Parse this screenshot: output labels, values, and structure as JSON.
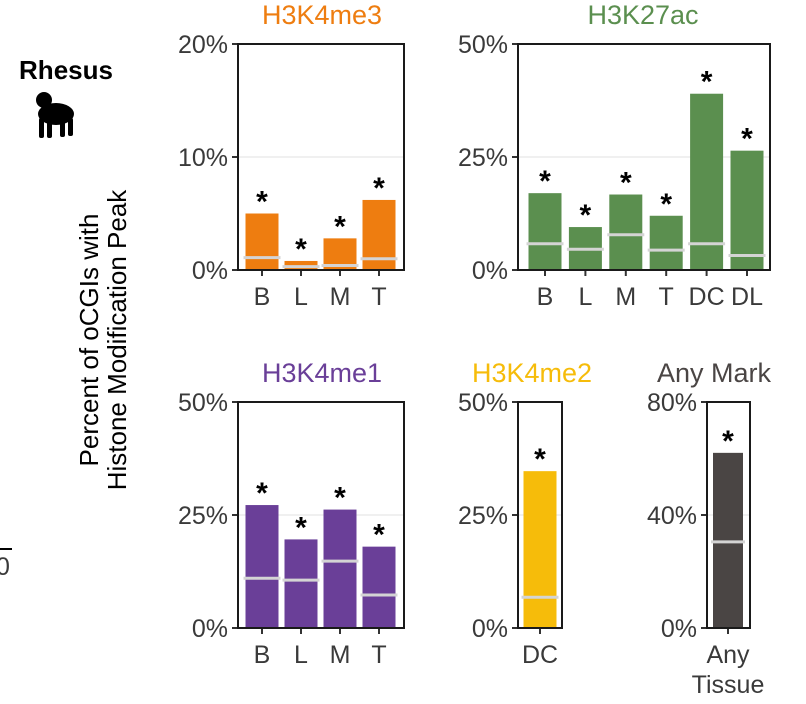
{
  "species_label": "Rhesus",
  "species_icon": "monkey-icon",
  "edge_fragment": "0",
  "ylabel_line1": "Percent of oCGIs with",
  "ylabel_line2": "Histone Modification Peak",
  "colors": {
    "H3K4me3": "#ee7d10",
    "H3K27ac": "#5b8f4f",
    "H3K4me1": "#6a3f98",
    "H3K4me2": "#f6bc0a",
    "Any Mark": "#4a4544",
    "background_line": "#d4d4d4"
  },
  "chart_data": [
    {
      "type": "bar",
      "title": "H3K4me3",
      "categories": [
        "B",
        "L",
        "M",
        "T"
      ],
      "values": [
        5.0,
        0.8,
        2.8,
        6.2
      ],
      "background_values": [
        1.1,
        0.3,
        0.4,
        1.0
      ],
      "significance": [
        "*",
        "*",
        "*",
        "*"
      ],
      "ylim": [
        0,
        20
      ],
      "yticks": [
        "0%",
        "10%",
        "20%"
      ],
      "ytick_values": [
        0,
        10,
        20
      ]
    },
    {
      "type": "bar",
      "title": "H3K27ac",
      "categories": [
        "B",
        "L",
        "M",
        "T",
        "DC",
        "DL"
      ],
      "values": [
        17.0,
        9.5,
        16.7,
        12.0,
        39.0,
        26.4
      ],
      "background_values": [
        5.8,
        4.6,
        7.8,
        4.4,
        5.8,
        3.2
      ],
      "significance": [
        "*",
        "*",
        "*",
        "*",
        "*",
        "*"
      ],
      "ylim": [
        0,
        50
      ],
      "yticks": [
        "0%",
        "25%",
        "50%"
      ],
      "ytick_values": [
        0,
        25,
        50
      ]
    },
    {
      "type": "bar",
      "title": "H3K4me1",
      "categories": [
        "B",
        "L",
        "M",
        "T"
      ],
      "values": [
        27.2,
        19.6,
        26.2,
        18.0
      ],
      "background_values": [
        11.0,
        10.6,
        14.8,
        7.3
      ],
      "significance": [
        "*",
        "*",
        "*",
        "*"
      ],
      "ylim": [
        0,
        50
      ],
      "yticks": [
        "0%",
        "25%",
        "50%"
      ],
      "ytick_values": [
        0,
        25,
        50
      ]
    },
    {
      "type": "bar",
      "title": "H3K4me2",
      "categories": [
        "DC"
      ],
      "values": [
        34.7
      ],
      "background_values": [
        6.8
      ],
      "significance": [
        "*"
      ],
      "ylim": [
        0,
        50
      ],
      "yticks": [
        "0%",
        "25%",
        "50%"
      ],
      "ytick_values": [
        0,
        25,
        50
      ]
    },
    {
      "type": "bar",
      "title": "Any Mark",
      "categories": [
        "Any\nTissue"
      ],
      "values": [
        62.0
      ],
      "background_values": [
        30.5
      ],
      "significance": [
        "*"
      ],
      "ylim": [
        0,
        80
      ],
      "yticks": [
        "0%",
        "40%",
        "80%"
      ],
      "ytick_values": [
        0,
        40,
        80
      ]
    }
  ]
}
